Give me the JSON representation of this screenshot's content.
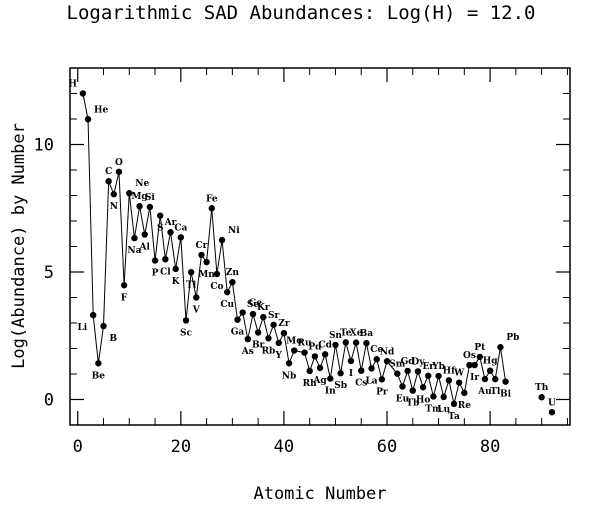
{
  "title": "Logarithmic SAD Abundances: Log(H) = 12.0",
  "chart_data": {
    "type": "line",
    "title": "Logarithmic SAD Abundances: Log(H) = 12.0",
    "xlabel": "Atomic Number",
    "ylabel": "Log(Abundance) by Number",
    "xlim": [
      -1.5,
      95.5
    ],
    "ylim": [
      -1.0,
      13.0
    ],
    "xticks": [
      0,
      20,
      40,
      60,
      80
    ],
    "yticks": [
      0,
      5,
      10
    ],
    "grid": false,
    "series": [
      {
        "points": [
          [
            1,
            12.0,
            "H",
            -1,
            -1
          ],
          [
            2,
            10.99,
            "He",
            1,
            -1
          ],
          [
            3,
            3.31,
            "Li",
            -1,
            1
          ],
          [
            4,
            1.42,
            "Be",
            0,
            1
          ],
          [
            5,
            2.88,
            "B",
            1,
            1
          ],
          [
            6,
            8.56,
            "C",
            0,
            -1
          ],
          [
            7,
            8.05,
            "N",
            0,
            1
          ],
          [
            8,
            8.93,
            "O",
            0,
            -1
          ],
          [
            9,
            4.48,
            "F",
            0,
            1
          ],
          [
            10,
            8.09,
            "Ne",
            1,
            -1
          ],
          [
            11,
            6.33,
            "Na",
            0,
            1
          ],
          [
            12,
            7.58,
            "Mg",
            0,
            -1
          ],
          [
            13,
            6.47,
            "Al",
            0,
            1
          ],
          [
            14,
            7.55,
            "Si",
            0,
            -1
          ],
          [
            15,
            5.45,
            "P",
            0,
            1
          ],
          [
            16,
            7.21,
            "S",
            0,
            1
          ],
          [
            17,
            5.5,
            "Cl",
            0,
            1
          ],
          [
            18,
            6.56,
            "Ar",
            0,
            -1
          ],
          [
            19,
            5.12,
            "K",
            0,
            1
          ],
          [
            20,
            6.36,
            "Ca",
            0,
            -1
          ],
          [
            21,
            3.1,
            "Sc",
            0,
            1
          ],
          [
            22,
            4.99,
            "Ti",
            0,
            1
          ],
          [
            23,
            4.0,
            "V",
            0,
            1
          ],
          [
            24,
            5.67,
            "Cr",
            0,
            -1
          ],
          [
            25,
            5.39,
            "Mn",
            0,
            1
          ],
          [
            26,
            7.5,
            "Fe",
            0,
            -1
          ],
          [
            27,
            4.92,
            "Co",
            0,
            1
          ],
          [
            28,
            6.25,
            "Ni",
            1,
            -1
          ],
          [
            29,
            4.21,
            "Cu",
            0,
            1
          ],
          [
            30,
            4.6,
            "Zn",
            0,
            -1
          ],
          [
            31,
            3.13,
            "Ga",
            0,
            1
          ],
          [
            32,
            3.41,
            "Ge",
            1,
            -1
          ],
          [
            33,
            2.37,
            "As",
            0,
            1
          ],
          [
            34,
            3.35,
            "Se",
            0,
            -1
          ],
          [
            35,
            2.63,
            "Br",
            0,
            1
          ],
          [
            36,
            3.23,
            "Kr",
            0,
            -1
          ],
          [
            37,
            2.4,
            "Rb",
            0,
            1
          ],
          [
            38,
            2.93,
            "Sr",
            0,
            -1
          ],
          [
            39,
            2.22,
            "Y",
            0,
            1
          ],
          [
            40,
            2.6,
            "Zr",
            0,
            -1
          ],
          [
            41,
            1.42,
            "Nb",
            0,
            1
          ],
          [
            42,
            1.92,
            "Mo",
            0,
            -1
          ],
          [
            44,
            1.84,
            "Ru",
            0,
            -1
          ],
          [
            45,
            1.12,
            "Rh",
            0,
            1
          ],
          [
            46,
            1.69,
            "Pd",
            0,
            -1
          ],
          [
            47,
            1.24,
            "Ag",
            0,
            1
          ],
          [
            48,
            1.77,
            "Cd",
            0,
            -1
          ],
          [
            49,
            0.82,
            "In",
            0,
            1
          ],
          [
            50,
            2.14,
            "Sn",
            0,
            -1
          ],
          [
            51,
            1.03,
            "Sb",
            0,
            1
          ],
          [
            52,
            2.24,
            "Te",
            0,
            -1
          ],
          [
            53,
            1.51,
            "I",
            0,
            1
          ],
          [
            54,
            2.23,
            "Xe",
            0,
            -1
          ],
          [
            55,
            1.13,
            "Cs",
            0,
            1
          ],
          [
            56,
            2.21,
            "Ba",
            0,
            -1
          ],
          [
            57,
            1.22,
            "La",
            0,
            1
          ],
          [
            58,
            1.58,
            "Ce",
            0,
            -1
          ],
          [
            59,
            0.79,
            "Pr",
            0,
            1
          ],
          [
            60,
            1.5,
            "Nd",
            0,
            -1
          ],
          [
            62,
            1.01,
            "Sm",
            0,
            -1
          ],
          [
            63,
            0.51,
            "Eu",
            0,
            1
          ],
          [
            64,
            1.12,
            "Gd",
            0,
            -1
          ],
          [
            65,
            0.35,
            "Tb",
            0,
            1
          ],
          [
            66,
            1.1,
            "Dy",
            0,
            -1
          ],
          [
            67,
            0.48,
            "Ho",
            0,
            1
          ],
          [
            68,
            0.93,
            "Er",
            0,
            -1
          ],
          [
            69,
            0.12,
            "Tm",
            0,
            1
          ],
          [
            70,
            0.92,
            "Yb",
            0,
            -1
          ],
          [
            71,
            0.1,
            "Lu",
            0,
            1
          ],
          [
            72,
            0.75,
            "Hf",
            0,
            -1
          ],
          [
            73,
            -0.17,
            "Ta",
            0,
            1
          ],
          [
            74,
            0.66,
            "W",
            0,
            -1
          ],
          [
            75,
            0.26,
            "Re",
            0,
            1
          ],
          [
            76,
            1.35,
            "Os",
            0,
            -1
          ],
          [
            77,
            1.35,
            "Ir",
            0,
            1
          ],
          [
            78,
            1.67,
            "Pt",
            0,
            -1
          ],
          [
            79,
            0.8,
            "Au",
            0,
            1
          ],
          [
            80,
            1.13,
            "Hg",
            0,
            -1
          ],
          [
            81,
            0.8,
            "Tl",
            0,
            1
          ],
          [
            82,
            2.05,
            "Pb",
            1,
            -1
          ],
          [
            83,
            0.7,
            "Bi",
            0,
            1
          ],
          [
            90,
            0.09,
            "Th",
            0,
            -1
          ],
          [
            92,
            -0.5,
            "U",
            0,
            -1
          ]
        ],
        "breaks": [
          [
            83,
            90
          ],
          [
            90,
            92
          ]
        ]
      }
    ]
  }
}
